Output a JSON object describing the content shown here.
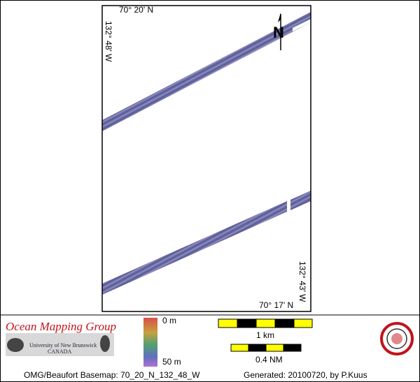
{
  "map": {
    "top_lat": "70° 20' N",
    "left_lon": "132° 48' W",
    "right_lon": "132° 43' W",
    "bottom_lat": "70° 17' N",
    "north": "N"
  },
  "legend": {
    "organization": "Ocean Mapping Group",
    "university": "University of New Brunswick",
    "country": "CANADA",
    "depth_min": "0 m",
    "depth_max": "50 m",
    "scale_km": "1 km",
    "scale_nm": "0.4 NM"
  },
  "footer": {
    "basemap": "OMG/Beaufort Basemap: 70_20_N_132_48_W",
    "generated": "Generated: 20100720, by P.Kuus"
  }
}
